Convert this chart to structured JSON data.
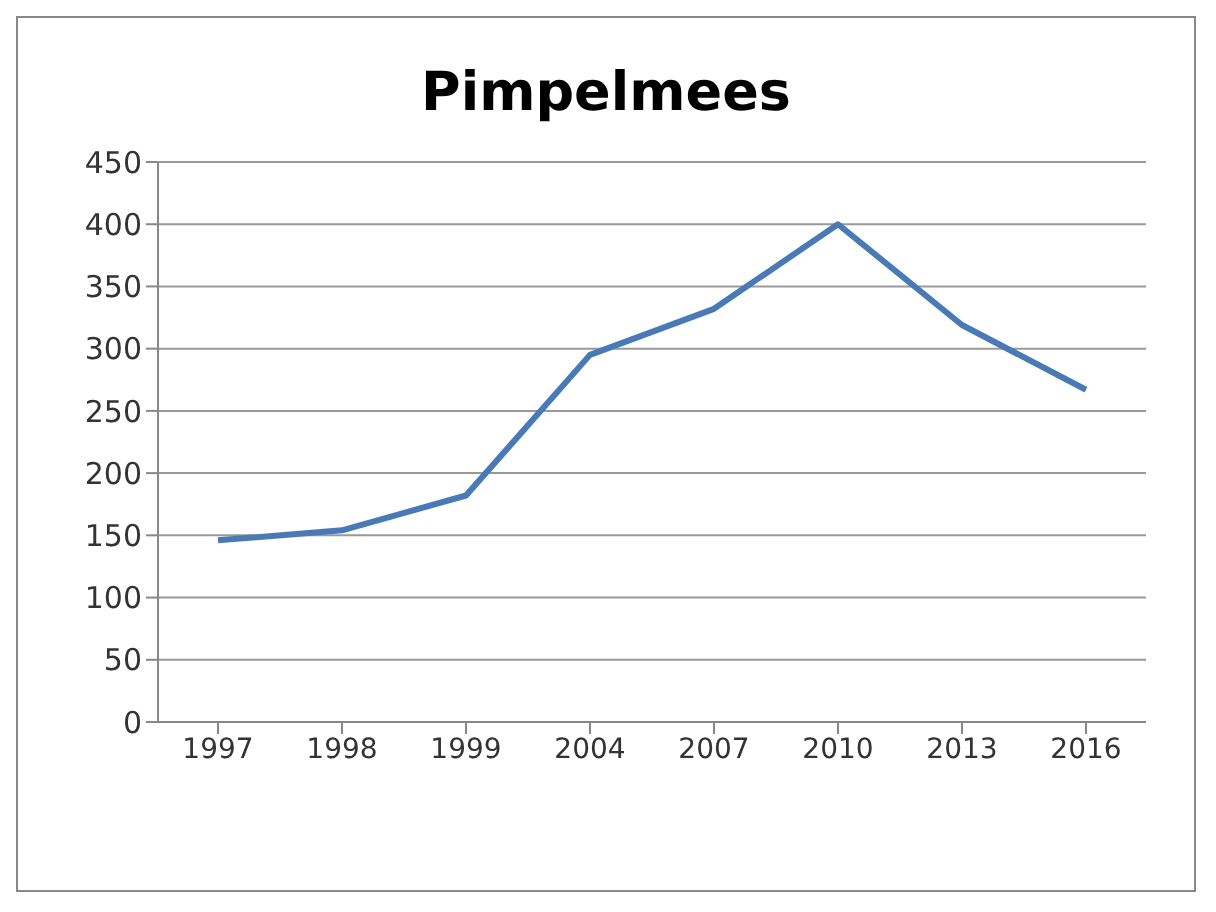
{
  "chart_data": {
    "type": "line",
    "title": "Pimpelmees",
    "categories": [
      "1997",
      "1998",
      "1999",
      "2004",
      "2007",
      "2010",
      "2013",
      "2016"
    ],
    "series": [
      {
        "color": "#4a7ab5",
        "values": [
          146,
          154,
          182,
          295,
          332,
          400,
          319,
          267
        ]
      }
    ],
    "ylim": [
      0,
      450
    ],
    "yticks": [
      0,
      50,
      100,
      150,
      200,
      250,
      300,
      350,
      400,
      450
    ],
    "grid": "y",
    "legend": false,
    "marker": "none",
    "line_style": "solid"
  }
}
